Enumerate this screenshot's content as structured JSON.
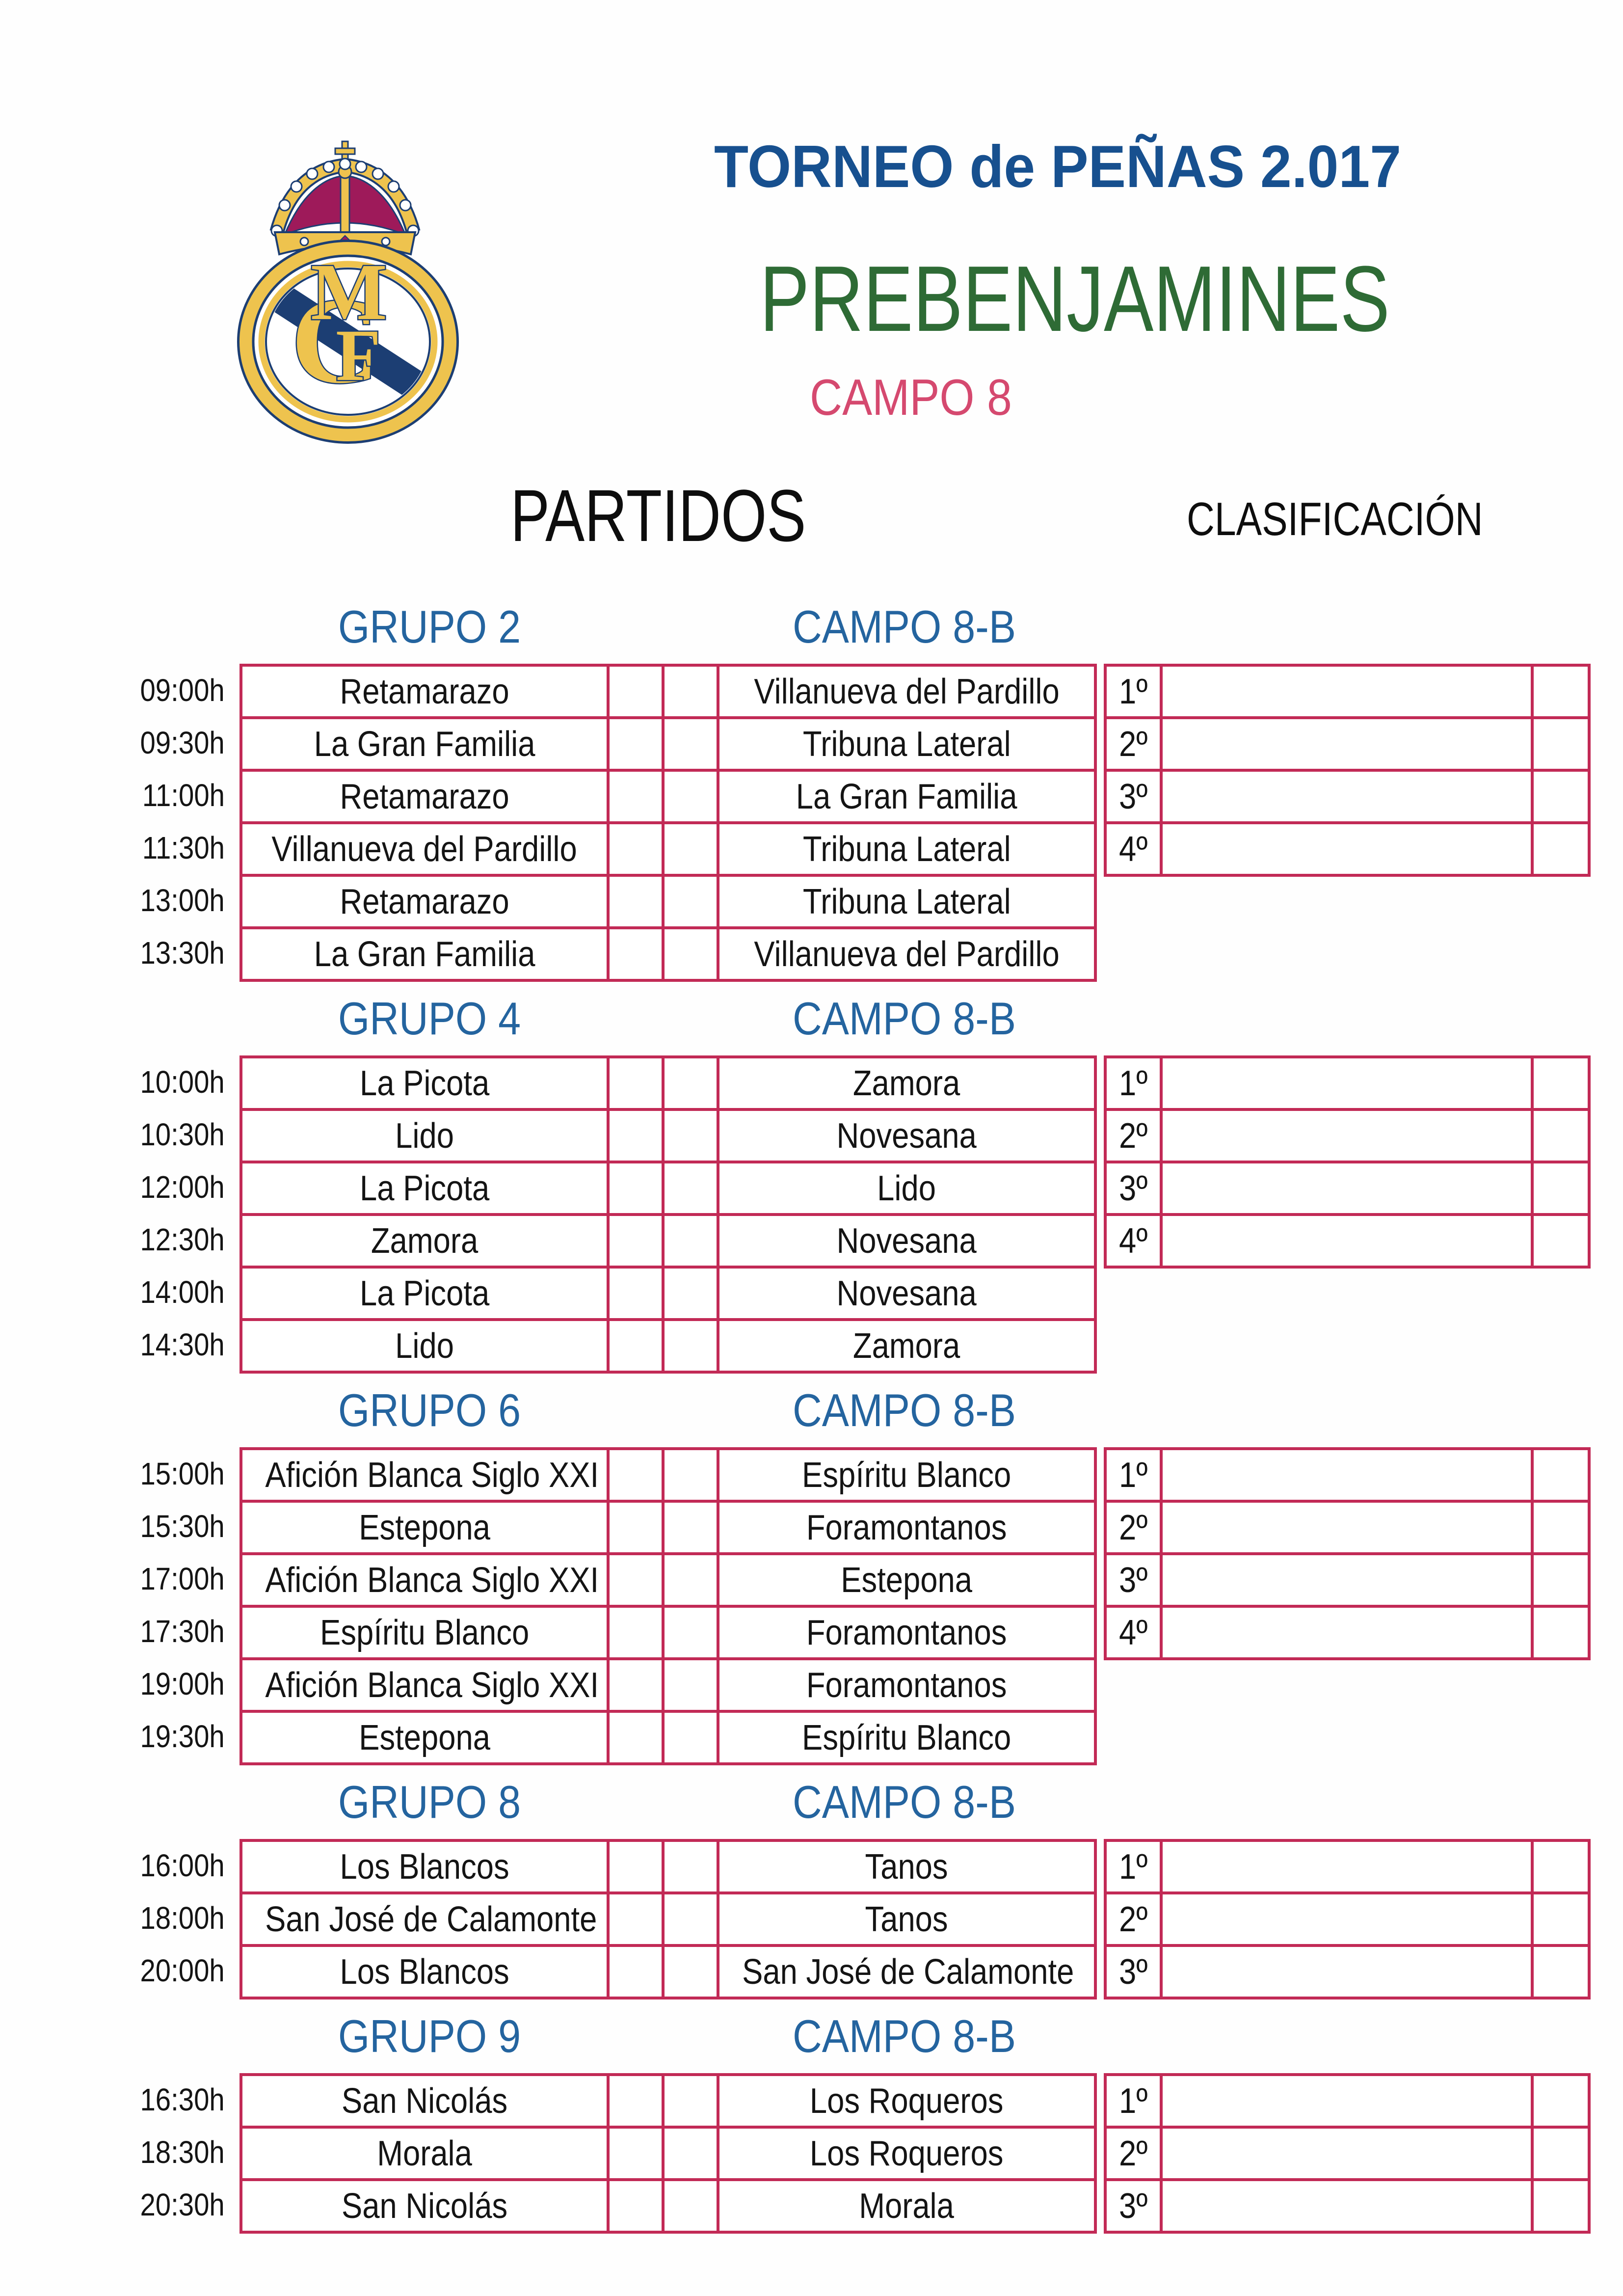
{
  "colors": {
    "title_blue": "#17508f",
    "heading_blue": "#24649f",
    "green": "#2e6b35",
    "pink": "#d5496f",
    "table_border": "#c22a56",
    "logo_gold": "#eec34e",
    "logo_navy": "#1c3e73",
    "logo_crimson": "#9e1a5a"
  },
  "header": {
    "logo": "real-madrid-crest",
    "monogram": "MCF",
    "title": "TORNEO de PEÑAS 2.017",
    "category": "PREBENJAMINES",
    "field": "CAMPO 8",
    "partidos_label": "PARTIDOS",
    "clasificacion_label": "CLASIFICACIÓN"
  },
  "groups": [
    {
      "name": "GRUPO 2",
      "field": "CAMPO 8-B",
      "matches": [
        {
          "time": "09:00h",
          "home": "Retamarazo",
          "home_score": "",
          "away_score": "",
          "away": "Villanueva del Pardillo"
        },
        {
          "time": "09:30h",
          "home": "La Gran Familia",
          "home_score": "",
          "away_score": "",
          "away": "Tribuna Lateral"
        },
        {
          "time": "11:00h",
          "home": "Retamarazo",
          "home_score": "",
          "away_score": "",
          "away": "La Gran Familia"
        },
        {
          "time": "11:30h",
          "home": "Villanueva del Pardillo",
          "home_score": "",
          "away_score": "",
          "away": "Tribuna Lateral"
        },
        {
          "time": "13:00h",
          "home": "Retamarazo",
          "home_score": "",
          "away_score": "",
          "away": "Tribuna Lateral"
        },
        {
          "time": "13:30h",
          "home": "La Gran Familia",
          "home_score": "",
          "away_score": "",
          "away": "Villanueva del Pardillo"
        }
      ],
      "classification": [
        {
          "rank": "1º",
          "team": "",
          "points": ""
        },
        {
          "rank": "2º",
          "team": "",
          "points": ""
        },
        {
          "rank": "3º",
          "team": "",
          "points": ""
        },
        {
          "rank": "4º",
          "team": "",
          "points": ""
        }
      ]
    },
    {
      "name": "GRUPO 4",
      "field": "CAMPO 8-B",
      "matches": [
        {
          "time": "10:00h",
          "home": "La Picota",
          "home_score": "",
          "away_score": "",
          "away": "Zamora"
        },
        {
          "time": "10:30h",
          "home": "Lido",
          "home_score": "",
          "away_score": "",
          "away": "Novesana"
        },
        {
          "time": "12:00h",
          "home": "La Picota",
          "home_score": "",
          "away_score": "",
          "away": "Lido"
        },
        {
          "time": "12:30h",
          "home": "Zamora",
          "home_score": "",
          "away_score": "",
          "away": "Novesana"
        },
        {
          "time": "14:00h",
          "home": "La Picota",
          "home_score": "",
          "away_score": "",
          "away": "Novesana"
        },
        {
          "time": "14:30h",
          "home": "Lido",
          "home_score": "",
          "away_score": "",
          "away": "Zamora"
        }
      ],
      "classification": [
        {
          "rank": "1º",
          "team": "",
          "points": ""
        },
        {
          "rank": "2º",
          "team": "",
          "points": ""
        },
        {
          "rank": "3º",
          "team": "",
          "points": ""
        },
        {
          "rank": "4º",
          "team": "",
          "points": ""
        }
      ]
    },
    {
      "name": "GRUPO 6",
      "field": "CAMPO 8-B",
      "matches": [
        {
          "time": "15:00h",
          "home": "Afición Blanca Siglo XXI",
          "home_score": "",
          "away_score": "",
          "away": "Espíritu Blanco"
        },
        {
          "time": "15:30h",
          "home": "Estepona",
          "home_score": "",
          "away_score": "",
          "away": "Foramontanos"
        },
        {
          "time": "17:00h",
          "home": "Afición Blanca Siglo XXI",
          "home_score": "",
          "away_score": "",
          "away": "Estepona"
        },
        {
          "time": "17:30h",
          "home": "Espíritu Blanco",
          "home_score": "",
          "away_score": "",
          "away": "Foramontanos"
        },
        {
          "time": "19:00h",
          "home": "Afición Blanca Siglo XXI",
          "home_score": "",
          "away_score": "",
          "away": "Foramontanos"
        },
        {
          "time": "19:30h",
          "home": "Estepona",
          "home_score": "",
          "away_score": "",
          "away": "Espíritu Blanco"
        }
      ],
      "classification": [
        {
          "rank": "1º",
          "team": "",
          "points": ""
        },
        {
          "rank": "2º",
          "team": "",
          "points": ""
        },
        {
          "rank": "3º",
          "team": "",
          "points": ""
        },
        {
          "rank": "4º",
          "team": "",
          "points": ""
        }
      ]
    },
    {
      "name": "GRUPO 8",
      "field": "CAMPO 8-B",
      "matches": [
        {
          "time": "16:00h",
          "home": "Los Blancos",
          "home_score": "",
          "away_score": "",
          "away": "Tanos"
        },
        {
          "time": "18:00h",
          "home": "San José de Calamonte",
          "home_score": "",
          "away_score": "",
          "away": "Tanos"
        },
        {
          "time": "20:00h",
          "home": "Los Blancos",
          "home_score": "",
          "away_score": "",
          "away": "San José de Calamonte"
        }
      ],
      "classification": [
        {
          "rank": "1º",
          "team": "",
          "points": ""
        },
        {
          "rank": "2º",
          "team": "",
          "points": ""
        },
        {
          "rank": "3º",
          "team": "",
          "points": ""
        }
      ]
    },
    {
      "name": "GRUPO 9",
      "field": "CAMPO 8-B",
      "matches": [
        {
          "time": "16:30h",
          "home": "San Nicolás",
          "home_score": "",
          "away_score": "",
          "away": "Los Roqueros"
        },
        {
          "time": "18:30h",
          "home": "Morala",
          "home_score": "",
          "away_score": "",
          "away": "Los Roqueros"
        },
        {
          "time": "20:30h",
          "home": "San Nicolás",
          "home_score": "",
          "away_score": "",
          "away": "Morala"
        }
      ],
      "classification": [
        {
          "rank": "1º",
          "team": "",
          "points": ""
        },
        {
          "rank": "2º",
          "team": "",
          "points": ""
        },
        {
          "rank": "3º",
          "team": "",
          "points": ""
        }
      ]
    }
  ]
}
